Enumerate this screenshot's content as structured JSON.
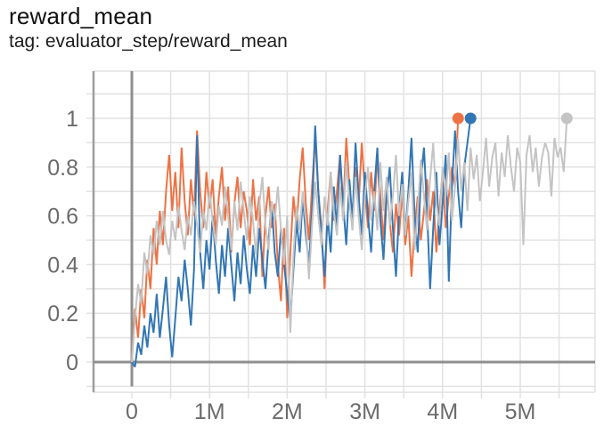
{
  "chart_data": {
    "type": "line",
    "title": "reward_mean",
    "subtitle": "tag: evaluator_step/reward_mean",
    "legend_position": "none",
    "grid": true,
    "end_markers": true,
    "x_axis": {
      "unit": "steps",
      "min": -0.49,
      "max": 5.96,
      "grid_step": 0.5,
      "tick_step": 1,
      "tick_labels": [
        "0",
        "1M",
        "2M",
        "3M",
        "4M",
        "5M"
      ]
    },
    "y_axis": {
      "min": -0.125,
      "max": 1.193,
      "grid_step": 0.1,
      "tick_step": 0.2,
      "tick_labels": [
        "0",
        "0.2",
        "0.4",
        "0.6",
        "0.8",
        "1"
      ]
    },
    "x_start": 0,
    "x_step_millions": 0.04,
    "series": [
      {
        "name": "orange-run",
        "color": "#ee7244",
        "final_value": 1.0,
        "final_step_millions": 4.2,
        "values": [
          0.0,
          0.22,
          0.1,
          0.3,
          0.18,
          0.42,
          0.3,
          0.55,
          0.4,
          0.62,
          0.48,
          0.7,
          0.85,
          0.62,
          0.78,
          0.55,
          0.88,
          0.66,
          0.52,
          0.75,
          0.6,
          0.95,
          0.7,
          0.55,
          0.78,
          0.63,
          0.75,
          0.52,
          0.68,
          0.8,
          0.58,
          0.72,
          0.45,
          0.65,
          0.76,
          0.55,
          0.7,
          0.62,
          0.48,
          0.75,
          0.58,
          0.68,
          0.35,
          0.6,
          0.72,
          0.55,
          0.65,
          0.4,
          0.25,
          0.55,
          0.18,
          0.45,
          0.68,
          0.55,
          0.75,
          0.88,
          0.65,
          0.5,
          0.72,
          0.92,
          0.7,
          0.55,
          0.3,
          0.62,
          0.78,
          0.58,
          0.7,
          0.85,
          0.62,
          0.92,
          0.72,
          0.58,
          0.8,
          0.65,
          0.9,
          0.7,
          0.55,
          0.78,
          0.62,
          0.85,
          0.68,
          0.5,
          0.72,
          0.58,
          0.45,
          0.65,
          0.52,
          0.7,
          0.48,
          0.6,
          0.35,
          0.55,
          0.68,
          0.5,
          0.62,
          0.75,
          0.58,
          0.7,
          0.45,
          0.62,
          0.78,
          0.55,
          0.68,
          0.8,
          0.72,
          1.0
        ]
      },
      {
        "name": "blue-run",
        "color": "#3276b5",
        "final_value": 1.0,
        "final_step_millions": 4.36,
        "values": [
          0.0,
          -0.02,
          0.08,
          0.03,
          0.15,
          0.06,
          0.2,
          0.12,
          0.28,
          0.1,
          0.22,
          0.35,
          0.15,
          0.02,
          0.18,
          0.35,
          0.25,
          0.42,
          0.3,
          0.15,
          0.38,
          0.93,
          0.45,
          0.3,
          0.5,
          0.38,
          0.6,
          0.42,
          0.28,
          0.48,
          0.35,
          0.55,
          0.4,
          0.25,
          0.45,
          0.32,
          0.52,
          0.38,
          0.28,
          0.48,
          0.35,
          0.55,
          0.42,
          0.3,
          0.5,
          0.65,
          0.45,
          0.35,
          0.55,
          0.4,
          0.28,
          0.17,
          0.38,
          0.58,
          0.45,
          0.68,
          0.52,
          0.4,
          0.62,
          0.97,
          0.7,
          0.52,
          0.35,
          0.6,
          0.45,
          0.72,
          0.55,
          0.85,
          0.65,
          0.48,
          0.75,
          0.58,
          0.9,
          0.68,
          0.52,
          0.78,
          0.6,
          0.45,
          0.7,
          0.88,
          0.58,
          0.42,
          0.68,
          0.8,
          0.55,
          0.35,
          0.62,
          0.78,
          0.52,
          0.7,
          0.92,
          0.6,
          0.45,
          0.75,
          0.88,
          0.62,
          0.3,
          0.55,
          0.78,
          0.48,
          0.65,
          0.85,
          0.33,
          0.72,
          0.95,
          0.7,
          0.55,
          0.8,
          0.9,
          1.0
        ]
      },
      {
        "name": "gray-run",
        "color": "#c4c4c4",
        "final_value": 1.0,
        "final_step_millions": 5.6,
        "values": [
          0.0,
          0.18,
          0.32,
          0.24,
          0.45,
          0.36,
          0.52,
          0.44,
          0.58,
          0.48,
          0.62,
          0.5,
          0.44,
          0.58,
          0.5,
          0.64,
          0.54,
          0.46,
          0.6,
          0.52,
          0.66,
          0.56,
          0.45,
          0.62,
          0.54,
          0.7,
          0.58,
          0.48,
          0.64,
          0.56,
          0.72,
          0.6,
          0.46,
          0.66,
          0.54,
          0.74,
          0.62,
          0.5,
          0.68,
          0.58,
          0.44,
          0.64,
          0.76,
          0.56,
          0.46,
          0.66,
          0.58,
          0.72,
          0.54,
          0.4,
          0.6,
          0.12,
          0.44,
          0.64,
          0.54,
          0.7,
          0.58,
          0.34,
          0.56,
          0.74,
          0.6,
          0.48,
          0.68,
          0.56,
          0.78,
          0.62,
          0.52,
          0.72,
          0.58,
          0.82,
          0.66,
          0.54,
          0.76,
          0.6,
          0.46,
          0.68,
          0.8,
          0.58,
          0.7,
          0.54,
          0.82,
          0.62,
          0.76,
          0.56,
          0.68,
          0.85,
          0.6,
          0.73,
          0.52,
          0.66,
          0.78,
          0.46,
          0.62,
          0.83,
          0.68,
          0.54,
          0.75,
          0.9,
          0.65,
          0.56,
          0.8,
          0.68,
          0.86,
          0.58,
          0.72,
          0.92,
          0.7,
          0.82,
          0.62,
          0.88,
          0.75,
          0.85,
          0.66,
          0.78,
          0.92,
          0.72,
          0.84,
          0.9,
          0.68,
          0.86,
          0.76,
          0.93,
          0.8,
          0.7,
          0.88,
          0.82,
          0.48,
          0.85,
          0.93,
          0.78,
          0.88,
          0.72,
          0.84,
          0.9,
          0.86,
          0.68,
          0.92,
          0.84,
          0.88,
          0.78,
          1.0
        ]
      }
    ]
  }
}
